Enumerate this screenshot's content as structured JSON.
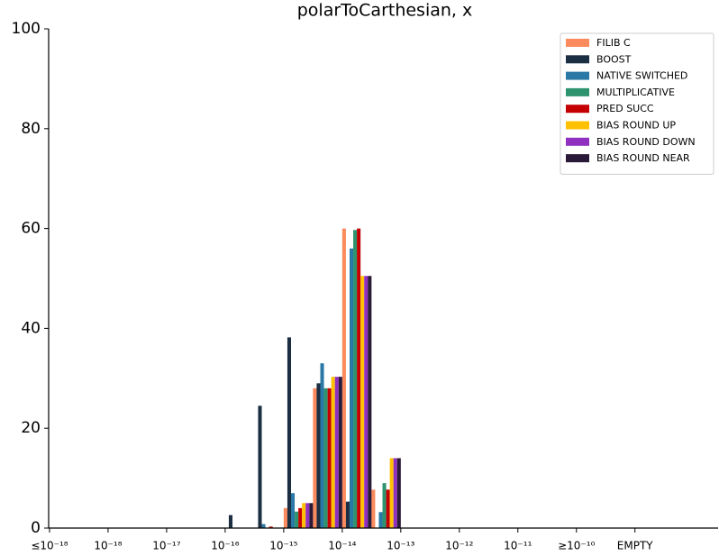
{
  "chart_data": {
    "type": "histogram",
    "title": "polarToCarthesian, x",
    "bins": [
      3,
      3.5,
      4,
      4.5,
      5,
      5.5,
      6
    ],
    "series": [
      {
        "name": "FILIB C",
        "color": "#fb8a5c",
        "values": [
          0,
          0,
          4,
          28,
          60,
          7.7
        ]
      },
      {
        "name": "BOOST",
        "color": "#1c2e42",
        "values": [
          2.6,
          24.5,
          38.2,
          29,
          5.3,
          0
        ]
      },
      {
        "name": "NATIVE SWITCHED",
        "color": "#2a78a5",
        "values": [
          0,
          0.8,
          7,
          33,
          56,
          3.2
        ]
      },
      {
        "name": "MULTIPLICATIVE",
        "color": "#2e9470",
        "values": [
          0,
          0,
          3.3,
          28,
          59.7,
          9
        ]
      },
      {
        "name": "PRED SUCC",
        "color": "#c40000",
        "values": [
          0,
          0.3,
          4,
          28,
          60,
          7.7
        ]
      },
      {
        "name": "BIAS ROUND UP",
        "color": "#ffc000",
        "values": [
          0,
          0,
          5,
          30.3,
          50.5,
          14
        ]
      },
      {
        "name": "BIAS ROUND DOWN",
        "color": "#9030c0",
        "values": [
          0,
          0,
          5,
          30.3,
          50.5,
          14
        ]
      },
      {
        "name": "BIAS ROUND NEAR",
        "color": "#2a1a38",
        "values": [
          0,
          0,
          5,
          30.3,
          50.5,
          14
        ]
      }
    ],
    "xlim": [
      -0.015,
      11.42
    ],
    "xticks": [
      {
        "value": 0,
        "label": "≤10⁻¹⁸"
      },
      {
        "value": 1,
        "label": "10⁻¹⁸"
      },
      {
        "value": 2,
        "label": "10⁻¹⁷"
      },
      {
        "value": 3,
        "label": "10⁻¹⁶"
      },
      {
        "value": 4,
        "label": "10⁻¹⁵"
      },
      {
        "value": 5,
        "label": "10⁻¹⁴"
      },
      {
        "value": 6,
        "label": "10⁻¹³"
      },
      {
        "value": 7,
        "label": "10⁻¹²"
      },
      {
        "value": 8,
        "label": "10⁻¹¹"
      },
      {
        "value": 9,
        "label": "≥10⁻¹⁰"
      },
      {
        "value": 10,
        "label": "EMPTY"
      }
    ],
    "ylim": [
      0,
      100
    ],
    "yticks": [
      0,
      20,
      40,
      60,
      80,
      100
    ],
    "legend": "upper right"
  }
}
